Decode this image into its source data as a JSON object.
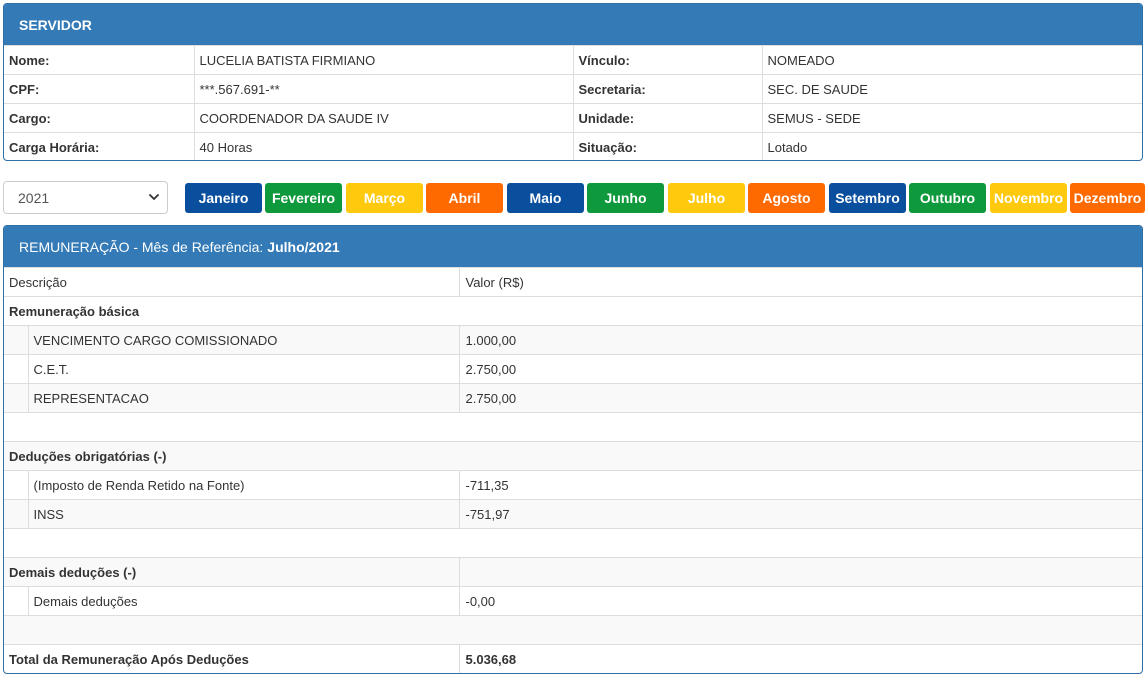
{
  "servidor": {
    "title": "SERVIDOR",
    "rows": [
      {
        "label1": "Nome:",
        "value1": "LUCELIA BATISTA FIRMIANO",
        "label2": "Vínculo:",
        "value2": "NOMEADO"
      },
      {
        "label1": "CPF:",
        "value1": "***.567.691-**",
        "label2": "Secretaria:",
        "value2": "SEC. DE SAUDE"
      },
      {
        "label1": "Cargo:",
        "value1": "COORDENADOR DA SAUDE IV",
        "label2": "Unidade:",
        "value2": "SEMUS - SEDE"
      },
      {
        "label1": "Carga Horária:",
        "value1": "40 Horas",
        "label2": "Situação:",
        "value2": "Lotado"
      }
    ]
  },
  "year_select": {
    "value": "2021"
  },
  "months": [
    {
      "label": "Janeiro",
      "color": "#0a4f9e"
    },
    {
      "label": "Fevereiro",
      "color": "#0e9a3c"
    },
    {
      "label": "Março",
      "color": "#ffc90e"
    },
    {
      "label": "Abril",
      "color": "#ff6a00"
    },
    {
      "label": "Maio",
      "color": "#0a4f9e"
    },
    {
      "label": "Junho",
      "color": "#0e9a3c"
    },
    {
      "label": "Julho",
      "color": "#ffc90e"
    },
    {
      "label": "Agosto",
      "color": "#ff6a00"
    },
    {
      "label": "Setembro",
      "color": "#0a4f9e"
    },
    {
      "label": "Outubro",
      "color": "#0e9a3c"
    },
    {
      "label": "Novembro",
      "color": "#ffc90e"
    },
    {
      "label": "Dezembro",
      "color": "#ff6a00"
    }
  ],
  "remuneracao": {
    "title_prefix": "REMUNERAÇÃO - Mês de Referência:",
    "title_month": "Julho/2021",
    "col_desc": "Descrição",
    "col_valor": "Valor (R$)",
    "basica": {
      "label": "Remuneração básica",
      "items": [
        {
          "desc": "VENCIMENTO CARGO COMISSIONADO",
          "valor": "1.000,00"
        },
        {
          "desc": "C.E.T.",
          "valor": "2.750,00"
        },
        {
          "desc": "REPRESENTACAO",
          "valor": "2.750,00"
        }
      ]
    },
    "deducoes": {
      "label": "Deduções obrigatórias (-)",
      "items": [
        {
          "desc": "(Imposto de Renda Retido na Fonte)",
          "valor": "-711,35"
        },
        {
          "desc": "INSS",
          "valor": "-751,97"
        }
      ]
    },
    "demais": {
      "label": "Demais deduções (-)",
      "items": [
        {
          "desc": "Demais deduções",
          "valor": "-0,00"
        }
      ]
    },
    "total": {
      "label": "Total da Remuneração Após Deduções",
      "valor": "5.036,68"
    }
  },
  "colors": {
    "panel_header": "#337ab7",
    "border": "#dddddd"
  }
}
